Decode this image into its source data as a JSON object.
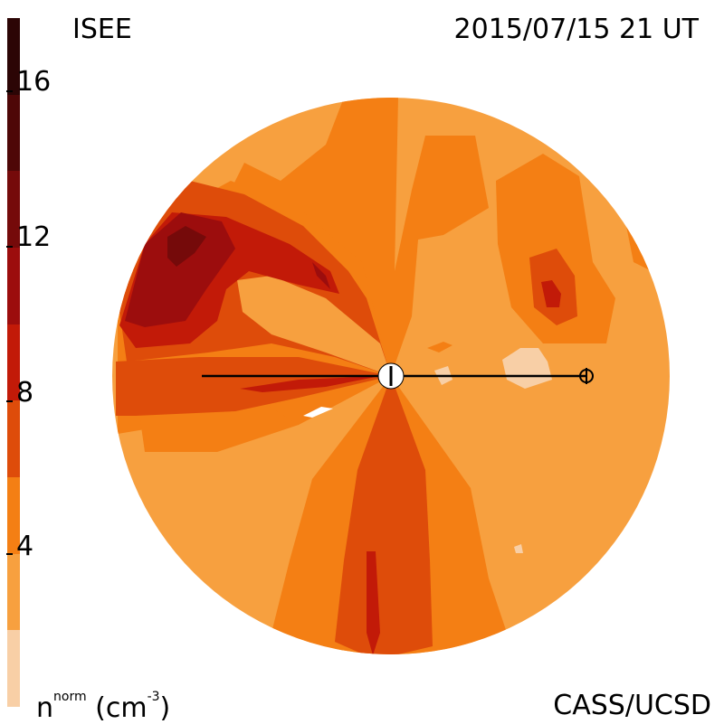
{
  "header": {
    "model": "ISEE",
    "datetime": "2015/07/15 21 UT"
  },
  "footer": {
    "credit": "CASS/UCSD",
    "quantity": "n",
    "quantity_sup": "norm",
    "unit_open": "(cm",
    "unit_sup": "-3",
    "unit_close": ")"
  },
  "colorbar": {
    "tick_labels": [
      "16",
      "12",
      "8",
      "4"
    ],
    "levels": [
      {
        "from": 0,
        "to": 2,
        "color": "#f8cfa6"
      },
      {
        "from": 2,
        "to": 4,
        "color": "#f7a03f"
      },
      {
        "from": 4,
        "to": 6,
        "color": "#f47f14"
      },
      {
        "from": 6,
        "to": 8,
        "color": "#de4c0a"
      },
      {
        "from": 8,
        "to": 10,
        "color": "#c21a08"
      },
      {
        "from": 10,
        "to": 12,
        "color": "#9c0d0d"
      },
      {
        "from": 12,
        "to": 14,
        "color": "#750a0a"
      },
      {
        "from": 14,
        "to": 16,
        "color": "#4e0707"
      },
      {
        "from": 16,
        "to": 18,
        "color": "#2c0505"
      }
    ]
  }
}
